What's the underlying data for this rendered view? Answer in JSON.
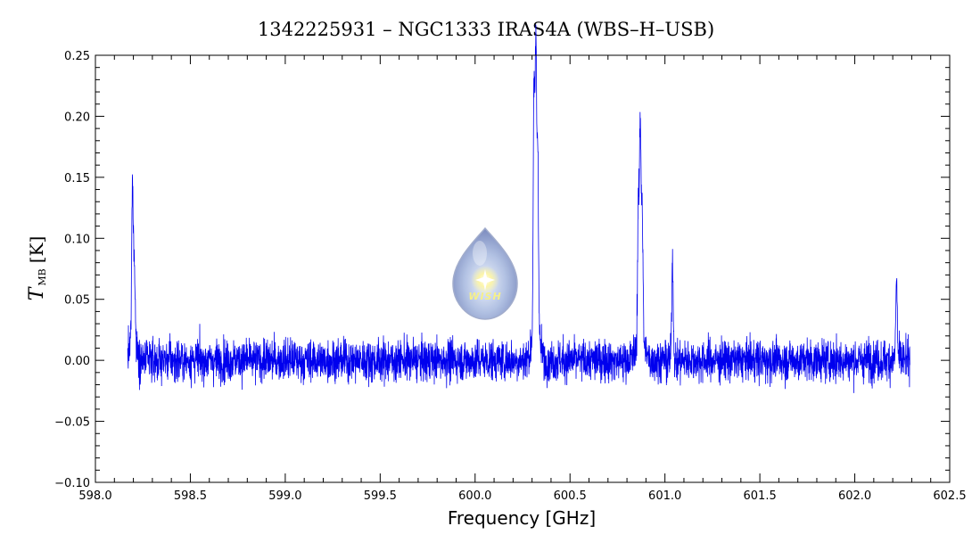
{
  "chart_data": {
    "type": "line",
    "title": "1342225931 – NGC1333 IRAS4A (WBS–H–USB)",
    "xlabel": "Frequency [GHz]",
    "ylabel_symbol": "T",
    "ylabel_subscript": "MB",
    "ylabel_unit": "[K]",
    "xlim": [
      598.0,
      602.5
    ],
    "ylim": [
      -0.1,
      0.25
    ],
    "x_ticks": [
      598.0,
      598.5,
      599.0,
      599.5,
      600.0,
      600.5,
      601.0,
      601.5,
      602.0,
      602.5
    ],
    "x_tick_labels": [
      "598.0",
      "598.5",
      "599.0",
      "599.5",
      "600.0",
      "600.5",
      "601.0",
      "601.5",
      "602.0",
      "602.5"
    ],
    "y_ticks": [
      -0.1,
      -0.05,
      0.0,
      0.05,
      0.1,
      0.15,
      0.2,
      0.25
    ],
    "y_tick_labels": [
      "−0.10",
      "−0.05",
      "0.00",
      "0.05",
      "0.10",
      "0.15",
      "0.20",
      "0.25"
    ],
    "grid": false,
    "series": [
      {
        "color": "#0000ee",
        "x_range": [
          598.17,
          602.29
        ],
        "baseline": 0.0,
        "noise_rms": 0.012,
        "peaks": [
          {
            "x": 598.195,
            "y": 0.122
          },
          {
            "x": 598.205,
            "y": 0.065
          },
          {
            "x": 600.31,
            "y": 0.192
          },
          {
            "x": 600.32,
            "y": 0.228
          },
          {
            "x": 600.33,
            "y": 0.15
          },
          {
            "x": 600.86,
            "y": 0.108
          },
          {
            "x": 600.87,
            "y": 0.172
          },
          {
            "x": 600.88,
            "y": 0.11
          },
          {
            "x": 601.04,
            "y": 0.083
          },
          {
            "x": 602.22,
            "y": 0.064
          }
        ]
      }
    ],
    "logo": {
      "name": "wish-logo",
      "text": "WISH"
    },
    "colors": {
      "line": "#0000ee",
      "frame": "#000000",
      "background": "#ffffff"
    }
  }
}
